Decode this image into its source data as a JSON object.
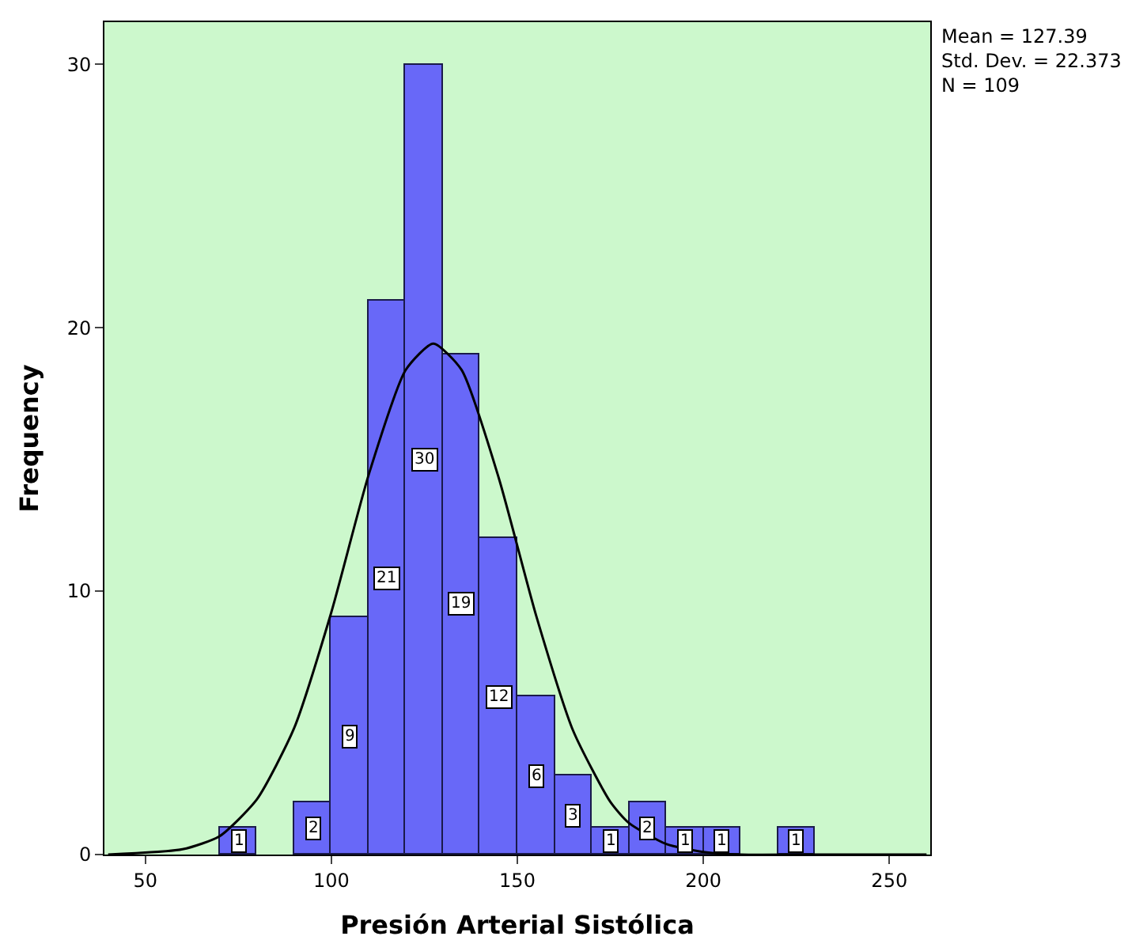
{
  "chart_data": {
    "type": "histogram",
    "xlabel": "Presión Arterial Sistólica",
    "ylabel": "Frequency",
    "annotations": [
      "Mean = 127.39\nStd. Dev. = 22.373\nN = 109"
    ],
    "xlim": [
      39,
      261
    ],
    "xticks": [
      50,
      100,
      150,
      200,
      250
    ],
    "ylim": [
      0,
      31.6
    ],
    "yticks": [
      0,
      10,
      20,
      30
    ],
    "series": [
      {
        "color": "#6868f8",
        "bins": [
          70,
          80,
          90,
          100,
          110,
          120,
          130,
          140,
          150,
          160,
          170,
          180,
          190,
          200,
          210,
          220,
          230
        ],
        "values": [
          1,
          0,
          2,
          9,
          21,
          30,
          19,
          12,
          6,
          3,
          1,
          2,
          1,
          1,
          0,
          1
        ],
        "value_labels": [
          "1",
          null,
          "2",
          "9",
          "21",
          "30",
          "19",
          "12",
          "6",
          "3",
          "1",
          "2",
          "1",
          "1",
          null,
          "1"
        ]
      },
      {
        "type": "line",
        "color": "#000000",
        "marker": "none",
        "x": [
          40,
          60,
          70,
          80,
          90,
          100,
          110,
          120,
          127.4,
          135,
          145,
          155,
          165,
          175,
          180,
          190,
          200,
          210,
          230,
          260
        ],
        "values": [
          0,
          0.2,
          0.7,
          2.1,
          4.8,
          9.2,
          14.4,
          18.4,
          19.4,
          18.4,
          14.3,
          9.1,
          4.7,
          2,
          1.2,
          0.4,
          0.1,
          0,
          0,
          0
        ]
      }
    ]
  }
}
